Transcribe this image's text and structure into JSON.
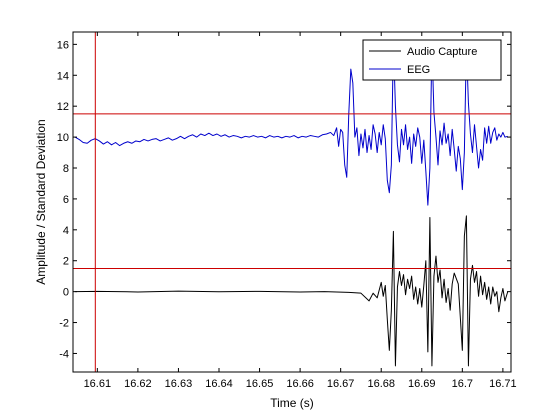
{
  "chart_data": {
    "type": "line",
    "xlabel": "Time (s)",
    "ylabel": "Amplitude / Standard Deviation",
    "xlim": [
      16.604,
      16.712
    ],
    "ylim": [
      -5.2,
      16.8
    ],
    "x_ticks": [
      16.61,
      16.62,
      16.63,
      16.64,
      16.65,
      16.66,
      16.67,
      16.68,
      16.69,
      16.7,
      16.71
    ],
    "x_tick_labels": [
      "16.61",
      "16.62",
      "16.63",
      "16.64",
      "16.65",
      "16.66",
      "16.67",
      "16.68",
      "16.69",
      "16.7",
      "16.71"
    ],
    "y_ticks": [
      -4,
      -2,
      0,
      2,
      4,
      6,
      8,
      10,
      12,
      14,
      16
    ],
    "y_tick_labels": [
      "-4",
      "-2",
      "0",
      "2",
      "4",
      "6",
      "8",
      "10",
      "12",
      "14",
      "16"
    ],
    "grid": false,
    "legend": {
      "position": "top-right",
      "entries": [
        "Audio Capture",
        "EEG"
      ]
    },
    "threshold_lines": {
      "y": [
        11.5,
        1.5
      ],
      "x": 16.6095,
      "color": "#cc0000"
    },
    "series": [
      {
        "name": "Audio Capture",
        "color": "#000000",
        "points": [
          [
            16.6045,
            0.0
          ],
          [
            16.61,
            0.02
          ],
          [
            16.62,
            -0.02
          ],
          [
            16.63,
            0.03
          ],
          [
            16.64,
            -0.01
          ],
          [
            16.65,
            0.02
          ],
          [
            16.66,
            -0.02
          ],
          [
            16.666,
            0.0
          ],
          [
            16.672,
            -0.05
          ],
          [
            16.675,
            -0.1
          ],
          [
            16.677,
            -0.6
          ],
          [
            16.678,
            -0.1
          ],
          [
            16.679,
            -0.4
          ],
          [
            16.68,
            0.6
          ],
          [
            16.6805,
            -0.3
          ],
          [
            16.681,
            0.4
          ],
          [
            16.6815,
            -1.8
          ],
          [
            16.682,
            -3.8
          ],
          [
            16.6825,
            -1.2
          ],
          [
            16.683,
            3.9
          ],
          [
            16.6835,
            -4.8
          ],
          [
            16.684,
            0.3
          ],
          [
            16.6845,
            1.3
          ],
          [
            16.685,
            0.4
          ],
          [
            16.6855,
            1.1
          ],
          [
            16.686,
            -0.2
          ],
          [
            16.6865,
            0.8
          ],
          [
            16.687,
            0.2
          ],
          [
            16.6875,
            1.0
          ],
          [
            16.688,
            -0.5
          ],
          [
            16.6885,
            0.3
          ],
          [
            16.689,
            -0.8
          ],
          [
            16.6895,
            0.2
          ],
          [
            16.69,
            -1.0
          ],
          [
            16.6905,
            0.4
          ],
          [
            16.691,
            2.0
          ],
          [
            16.6915,
            -3.9
          ],
          [
            16.692,
            4.8
          ],
          [
            16.6925,
            -4.8
          ],
          [
            16.693,
            1.0
          ],
          [
            16.6935,
            2.3
          ],
          [
            16.694,
            0.6
          ],
          [
            16.6945,
            1.4
          ],
          [
            16.695,
            -0.4
          ],
          [
            16.6955,
            0.8
          ],
          [
            16.696,
            -0.7
          ],
          [
            16.6965,
            0.2
          ],
          [
            16.697,
            -1.2
          ],
          [
            16.6975,
            0.5
          ],
          [
            16.698,
            1.2
          ],
          [
            16.699,
            0.5
          ],
          [
            16.7,
            -3.8
          ],
          [
            16.7005,
            3.6
          ],
          [
            16.701,
            4.9
          ],
          [
            16.7015,
            -4.8
          ],
          [
            16.702,
            0.8
          ],
          [
            16.7025,
            1.7
          ],
          [
            16.703,
            0.6
          ],
          [
            16.7035,
            1.3
          ],
          [
            16.704,
            -0.3
          ],
          [
            16.7045,
            1.0
          ],
          [
            16.705,
            -0.2
          ],
          [
            16.7055,
            0.6
          ],
          [
            16.706,
            -0.5
          ],
          [
            16.7065,
            0.3
          ],
          [
            16.707,
            -0.8
          ],
          [
            16.7075,
            0.3
          ],
          [
            16.708,
            -0.3
          ],
          [
            16.7085,
            0.0
          ],
          [
            16.709,
            -1.3
          ],
          [
            16.7095,
            -0.4
          ],
          [
            16.71,
            0.2
          ],
          [
            16.7105,
            -0.6
          ],
          [
            16.7112,
            0.0
          ]
        ]
      },
      {
        "name": "EEG",
        "color": "#0000cc",
        "points": [
          [
            16.6045,
            10.0
          ],
          [
            16.6055,
            9.85
          ],
          [
            16.6065,
            9.65
          ],
          [
            16.6075,
            9.6
          ],
          [
            16.6085,
            9.8
          ],
          [
            16.6095,
            9.9
          ],
          [
            16.6105,
            9.75
          ],
          [
            16.6115,
            9.55
          ],
          [
            16.6125,
            9.7
          ],
          [
            16.6135,
            9.5
          ],
          [
            16.6145,
            9.65
          ],
          [
            16.6155,
            9.45
          ],
          [
            16.6165,
            9.6
          ],
          [
            16.6175,
            9.7
          ],
          [
            16.6185,
            9.6
          ],
          [
            16.6195,
            9.75
          ],
          [
            16.6205,
            9.7
          ],
          [
            16.6215,
            9.85
          ],
          [
            16.6225,
            9.75
          ],
          [
            16.6235,
            9.85
          ],
          [
            16.6245,
            9.9
          ],
          [
            16.6255,
            9.75
          ],
          [
            16.6265,
            9.85
          ],
          [
            16.6275,
            9.95
          ],
          [
            16.6285,
            9.8
          ],
          [
            16.6295,
            9.9
          ],
          [
            16.6305,
            10.05
          ],
          [
            16.6315,
            9.9
          ],
          [
            16.6325,
            10.05
          ],
          [
            16.6335,
            10.15
          ],
          [
            16.6345,
            10.0
          ],
          [
            16.6355,
            10.2
          ],
          [
            16.6365,
            10.1
          ],
          [
            16.6375,
            10.25
          ],
          [
            16.6385,
            10.1
          ],
          [
            16.6395,
            10.2
          ],
          [
            16.6405,
            10.05
          ],
          [
            16.6415,
            10.15
          ],
          [
            16.6425,
            10.0
          ],
          [
            16.6435,
            10.1
          ],
          [
            16.6445,
            10.05
          ],
          [
            16.6455,
            9.95
          ],
          [
            16.6465,
            10.05
          ],
          [
            16.6475,
            10.0
          ],
          [
            16.6485,
            10.1
          ],
          [
            16.6495,
            10.0
          ],
          [
            16.6505,
            10.05
          ],
          [
            16.6515,
            9.95
          ],
          [
            16.6525,
            10.1
          ],
          [
            16.6535,
            10.0
          ],
          [
            16.6545,
            10.05
          ],
          [
            16.6555,
            9.95
          ],
          [
            16.6565,
            10.05
          ],
          [
            16.6575,
            10.0
          ],
          [
            16.6585,
            10.1
          ],
          [
            16.6595,
            9.95
          ],
          [
            16.6605,
            10.05
          ],
          [
            16.6615,
            10.0
          ],
          [
            16.6625,
            10.1
          ],
          [
            16.6635,
            10.05
          ],
          [
            16.6645,
            10.0
          ],
          [
            16.6655,
            10.15
          ],
          [
            16.6665,
            10.2
          ],
          [
            16.6675,
            10.3
          ],
          [
            16.6683,
            10.1
          ],
          [
            16.669,
            10.6
          ],
          [
            16.6695,
            9.4
          ],
          [
            16.67,
            10.5
          ],
          [
            16.6705,
            10.3
          ],
          [
            16.671,
            8.2
          ],
          [
            16.6715,
            7.4
          ],
          [
            16.672,
            11.5
          ],
          [
            16.6725,
            14.4
          ],
          [
            16.673,
            13.5
          ],
          [
            16.6735,
            10.0
          ],
          [
            16.674,
            10.6
          ],
          [
            16.6745,
            8.8
          ],
          [
            16.675,
            10.2
          ],
          [
            16.6755,
            9.3
          ],
          [
            16.676,
            10.5
          ],
          [
            16.6765,
            9.0
          ],
          [
            16.677,
            10.1
          ],
          [
            16.6775,
            9.2
          ],
          [
            16.678,
            10.8
          ],
          [
            16.6785,
            10.2
          ],
          [
            16.679,
            9.0
          ],
          [
            16.6795,
            10.3
          ],
          [
            16.68,
            9.5
          ],
          [
            16.6805,
            10.8
          ],
          [
            16.681,
            9.9
          ],
          [
            16.6815,
            7.2
          ],
          [
            16.682,
            6.4
          ],
          [
            16.6825,
            8.2
          ],
          [
            16.683,
            16.2
          ],
          [
            16.6835,
            12.0
          ],
          [
            16.684,
            9.5
          ],
          [
            16.6845,
            8.4
          ],
          [
            16.685,
            10.5
          ],
          [
            16.6855,
            9.5
          ],
          [
            16.686,
            10.8
          ],
          [
            16.6865,
            9.2
          ],
          [
            16.687,
            10.0
          ],
          [
            16.6875,
            8.3
          ],
          [
            16.688,
            10.2
          ],
          [
            16.6885,
            9.4
          ],
          [
            16.689,
            10.6
          ],
          [
            16.6895,
            10.0
          ],
          [
            16.69,
            8.3
          ],
          [
            16.6905,
            9.8
          ],
          [
            16.691,
            7.8
          ],
          [
            16.6915,
            5.6
          ],
          [
            16.692,
            8.0
          ],
          [
            16.6925,
            16.0
          ],
          [
            16.693,
            11.6
          ],
          [
            16.6935,
            10.0
          ],
          [
            16.694,
            8.2
          ],
          [
            16.6945,
            10.4
          ],
          [
            16.695,
            9.5
          ],
          [
            16.6955,
            10.9
          ],
          [
            16.696,
            9.6
          ],
          [
            16.6965,
            10.2
          ],
          [
            16.697,
            8.8
          ],
          [
            16.6975,
            10.5
          ],
          [
            16.698,
            9.2
          ],
          [
            16.6985,
            7.8
          ],
          [
            16.699,
            9.4
          ],
          [
            16.6995,
            8.6
          ],
          [
            16.7,
            6.6
          ],
          [
            16.7005,
            9.0
          ],
          [
            16.701,
            16.0
          ],
          [
            16.7015,
            12.2
          ],
          [
            16.702,
            10.2
          ],
          [
            16.7025,
            9.0
          ],
          [
            16.703,
            10.8
          ],
          [
            16.7035,
            9.4
          ],
          [
            16.704,
            8.0
          ],
          [
            16.7045,
            9.2
          ],
          [
            16.705,
            8.5
          ],
          [
            16.7055,
            10.6
          ],
          [
            16.706,
            9.6
          ],
          [
            16.7065,
            10.7
          ],
          [
            16.707,
            9.6
          ],
          [
            16.7075,
            10.3
          ],
          [
            16.708,
            10.6
          ],
          [
            16.7085,
            9.8
          ],
          [
            16.709,
            10.2
          ],
          [
            16.7095,
            10.0
          ],
          [
            16.71,
            10.3
          ],
          [
            16.7105,
            10.0
          ],
          [
            16.7112,
            10.05
          ]
        ]
      }
    ]
  }
}
